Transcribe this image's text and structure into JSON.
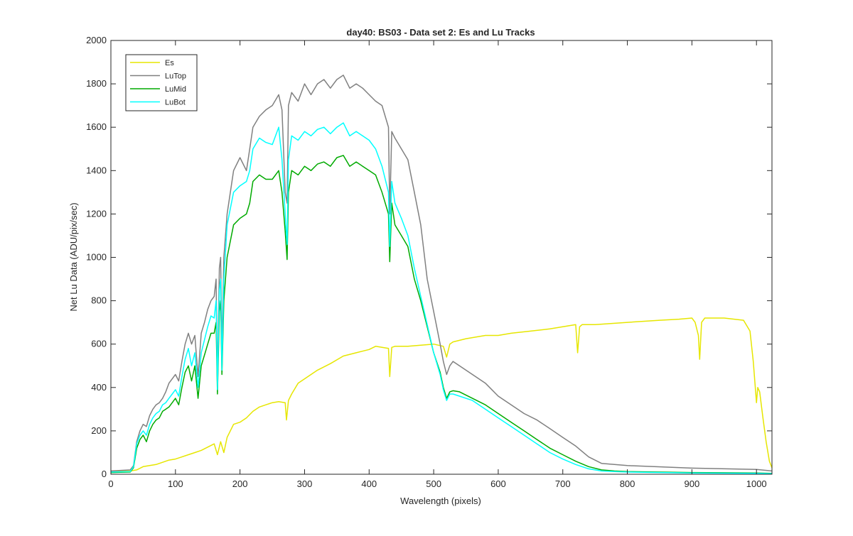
{
  "chart_data": {
    "type": "line",
    "title": "day40: BS03 - Data set 2: Es and Lu Tracks",
    "xlabel": "Wavelength (pixels)",
    "ylabel": "Net Lu Data (ADU/pix/sec)",
    "xlim": [
      0,
      1024
    ],
    "ylim": [
      0,
      2000
    ],
    "xticks": [
      0,
      100,
      200,
      300,
      400,
      500,
      600,
      700,
      800,
      900,
      1000
    ],
    "yticks": [
      0,
      200,
      400,
      600,
      800,
      1000,
      1200,
      1400,
      1600,
      1800,
      2000
    ],
    "grid": false,
    "legend_position": "top-left",
    "series": [
      {
        "name": "Es",
        "color": "#e6e600",
        "x": [
          0,
          30,
          40,
          50,
          60,
          70,
          80,
          90,
          100,
          110,
          120,
          130,
          140,
          150,
          160,
          165,
          170,
          175,
          180,
          190,
          200,
          210,
          220,
          230,
          240,
          250,
          260,
          270,
          272,
          275,
          280,
          290,
          300,
          320,
          340,
          360,
          380,
          400,
          410,
          420,
          430,
          432,
          435,
          440,
          460,
          480,
          500,
          515,
          520,
          525,
          530,
          550,
          580,
          600,
          620,
          650,
          680,
          700,
          710,
          720,
          723,
          726,
          730,
          750,
          800,
          850,
          880,
          900,
          905,
          910,
          912,
          915,
          920,
          950,
          980,
          990,
          995,
          1000,
          1002,
          1005,
          1010,
          1015,
          1020,
          1024
        ],
        "y": [
          12,
          15,
          20,
          35,
          40,
          45,
          55,
          65,
          70,
          80,
          90,
          100,
          110,
          125,
          140,
          90,
          150,
          100,
          170,
          230,
          240,
          260,
          290,
          310,
          320,
          330,
          335,
          330,
          250,
          340,
          370,
          420,
          440,
          480,
          510,
          545,
          560,
          575,
          590,
          585,
          580,
          450,
          585,
          590,
          590,
          595,
          600,
          590,
          540,
          600,
          610,
          625,
          640,
          640,
          650,
          660,
          670,
          680,
          685,
          690,
          560,
          680,
          690,
          690,
          700,
          710,
          715,
          720,
          700,
          640,
          530,
          700,
          720,
          720,
          710,
          660,
          520,
          330,
          400,
          380,
          260,
          150,
          60,
          30
        ]
      },
      {
        "name": "LuTop",
        "color": "#808080",
        "x": [
          0,
          30,
          35,
          40,
          45,
          50,
          55,
          60,
          65,
          70,
          75,
          80,
          85,
          90,
          95,
          100,
          105,
          110,
          115,
          120,
          125,
          130,
          135,
          140,
          145,
          150,
          155,
          160,
          163,
          165,
          168,
          170,
          172,
          175,
          180,
          190,
          200,
          210,
          215,
          220,
          230,
          240,
          250,
          260,
          265,
          270,
          273,
          275,
          280,
          290,
          300,
          310,
          320,
          330,
          340,
          350,
          360,
          370,
          380,
          390,
          400,
          410,
          420,
          430,
          432,
          435,
          440,
          450,
          460,
          470,
          480,
          490,
          500,
          510,
          515,
          520,
          525,
          530,
          540,
          560,
          580,
          600,
          620,
          640,
          660,
          680,
          700,
          720,
          740,
          760,
          780,
          800,
          900,
          1000,
          1024
        ],
        "y": [
          15,
          20,
          40,
          150,
          200,
          230,
          220,
          270,
          300,
          320,
          330,
          350,
          380,
          420,
          440,
          460,
          430,
          520,
          600,
          650,
          600,
          640,
          450,
          650,
          700,
          760,
          800,
          820,
          900,
          420,
          950,
          1000,
          560,
          1000,
          1200,
          1400,
          1460,
          1400,
          1500,
          1600,
          1650,
          1680,
          1700,
          1750,
          1680,
          1300,
          1250,
          1700,
          1760,
          1720,
          1800,
          1750,
          1800,
          1820,
          1780,
          1820,
          1840,
          1780,
          1800,
          1780,
          1750,
          1720,
          1700,
          1600,
          1200,
          1580,
          1550,
          1500,
          1450,
          1300,
          1150,
          900,
          750,
          600,
          520,
          460,
          500,
          520,
          500,
          460,
          420,
          360,
          320,
          280,
          250,
          210,
          170,
          130,
          80,
          50,
          45,
          40,
          28,
          22,
          15
        ]
      },
      {
        "name": "LuMid",
        "color": "#00aa00",
        "x": [
          0,
          30,
          35,
          40,
          45,
          50,
          55,
          60,
          65,
          70,
          75,
          80,
          85,
          90,
          95,
          100,
          105,
          110,
          115,
          120,
          125,
          130,
          135,
          140,
          145,
          150,
          155,
          160,
          163,
          165,
          168,
          170,
          172,
          175,
          180,
          190,
          200,
          210,
          215,
          220,
          230,
          240,
          250,
          260,
          265,
          270,
          273,
          275,
          280,
          290,
          300,
          310,
          320,
          330,
          340,
          350,
          360,
          370,
          380,
          390,
          400,
          410,
          420,
          430,
          432,
          435,
          440,
          450,
          460,
          470,
          480,
          490,
          500,
          510,
          515,
          520,
          525,
          530,
          540,
          560,
          580,
          600,
          620,
          640,
          660,
          680,
          700,
          720,
          740,
          760,
          780,
          800,
          900,
          1000,
          1024
        ],
        "y": [
          8,
          10,
          30,
          120,
          160,
          180,
          150,
          200,
          230,
          250,
          260,
          290,
          300,
          310,
          330,
          350,
          320,
          400,
          470,
          500,
          430,
          500,
          350,
          500,
          550,
          600,
          650,
          650,
          700,
          370,
          750,
          800,
          460,
          800,
          1000,
          1150,
          1180,
          1200,
          1250,
          1350,
          1380,
          1360,
          1360,
          1400,
          1300,
          1120,
          990,
          1300,
          1400,
          1380,
          1420,
          1400,
          1430,
          1440,
          1420,
          1460,
          1470,
          1420,
          1440,
          1420,
          1400,
          1380,
          1300,
          1200,
          980,
          1250,
          1150,
          1100,
          1050,
          900,
          800,
          680,
          560,
          470,
          400,
          350,
          380,
          385,
          380,
          350,
          320,
          280,
          240,
          200,
          160,
          120,
          90,
          60,
          35,
          20,
          15,
          12,
          8,
          6,
          4
        ]
      },
      {
        "name": "LuBot",
        "color": "#00ffff",
        "x": [
          0,
          30,
          35,
          40,
          45,
          50,
          55,
          60,
          65,
          70,
          75,
          80,
          85,
          90,
          95,
          100,
          105,
          110,
          115,
          120,
          125,
          130,
          135,
          140,
          145,
          150,
          155,
          160,
          163,
          165,
          168,
          170,
          172,
          175,
          180,
          190,
          200,
          210,
          215,
          220,
          230,
          240,
          250,
          260,
          265,
          270,
          273,
          275,
          280,
          290,
          300,
          310,
          320,
          330,
          340,
          350,
          360,
          370,
          380,
          390,
          400,
          410,
          420,
          430,
          432,
          435,
          440,
          450,
          460,
          470,
          480,
          490,
          500,
          510,
          515,
          520,
          525,
          530,
          540,
          560,
          580,
          600,
          620,
          640,
          660,
          680,
          700,
          720,
          740,
          760,
          780,
          800,
          900,
          1000,
          1024
        ],
        "y": [
          10,
          12,
          35,
          140,
          180,
          200,
          180,
          230,
          260,
          280,
          290,
          320,
          330,
          350,
          370,
          390,
          360,
          450,
          530,
          580,
          500,
          560,
          400,
          560,
          620,
          680,
          730,
          720,
          800,
          390,
          850,
          900,
          480,
          900,
          1150,
          1300,
          1330,
          1350,
          1400,
          1500,
          1550,
          1530,
          1520,
          1600,
          1450,
          1200,
          1060,
          1450,
          1560,
          1540,
          1580,
          1560,
          1590,
          1600,
          1570,
          1600,
          1620,
          1560,
          1580,
          1560,
          1540,
          1500,
          1420,
          1300,
          1050,
          1350,
          1250,
          1180,
          1100,
          950,
          820,
          690,
          560,
          460,
          390,
          340,
          370,
          370,
          360,
          340,
          300,
          260,
          220,
          180,
          140,
          100,
          70,
          45,
          25,
          15,
          12,
          10,
          6,
          4,
          3
        ]
      }
    ]
  }
}
